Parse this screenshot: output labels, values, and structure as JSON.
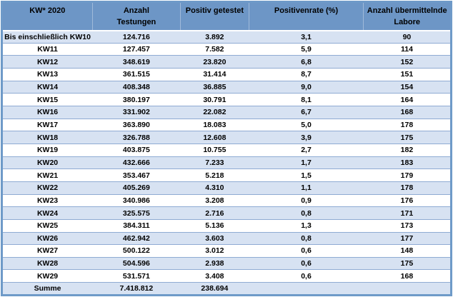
{
  "colors": {
    "outer_border": "#6e9ac8",
    "header_bg": "#6d96c6",
    "band_bg": "#d7e2f2",
    "row_line": "#8fabd3",
    "tick": "#5a7fae",
    "text": "#000000"
  },
  "table": {
    "headers": [
      {
        "label": "KW* 2020",
        "lines": [
          "KW* 2020",
          ""
        ]
      },
      {
        "label": "Anzahl Testungen",
        "lines": [
          "Anzahl",
          "Testungen"
        ]
      },
      {
        "label": "Positiv getestet",
        "lines": [
          "Positiv getestet",
          ""
        ]
      },
      {
        "label": "Positivenrate (%)",
        "lines": [
          "Positivenrate (%)",
          ""
        ]
      },
      {
        "label": "Anzahl übermittelnde Labore",
        "lines": [
          "Anzahl übermittelnde",
          "Labore"
        ]
      }
    ],
    "rows": [
      {
        "label": "Bis einschließlich KW10",
        "testungen": "124.716",
        "positiv": "3.892",
        "rate": "3,1",
        "labore": "90"
      },
      {
        "label": "KW11",
        "testungen": "127.457",
        "positiv": "7.582",
        "rate": "5,9",
        "labore": "114"
      },
      {
        "label": "KW12",
        "testungen": "348.619",
        "positiv": "23.820",
        "rate": "6,8",
        "labore": "152"
      },
      {
        "label": "KW13",
        "testungen": "361.515",
        "positiv": "31.414",
        "rate": "8,7",
        "labore": "151"
      },
      {
        "label": "KW14",
        "testungen": "408.348",
        "positiv": "36.885",
        "rate": "9,0",
        "labore": "154"
      },
      {
        "label": "KW15",
        "testungen": "380.197",
        "positiv": "30.791",
        "rate": "8,1",
        "labore": "164"
      },
      {
        "label": "KW16",
        "testungen": "331.902",
        "positiv": "22.082",
        "rate": "6,7",
        "labore": "168"
      },
      {
        "label": "KW17",
        "testungen": "363.890",
        "positiv": "18.083",
        "rate": "5,0",
        "labore": "178"
      },
      {
        "label": "KW18",
        "testungen": "326.788",
        "positiv": "12.608",
        "rate": "3,9",
        "labore": "175"
      },
      {
        "label": "KW19",
        "testungen": "403.875",
        "positiv": "10.755",
        "rate": "2,7",
        "labore": "182"
      },
      {
        "label": "KW20",
        "testungen": "432.666",
        "positiv": "7.233",
        "rate": "1,7",
        "labore": "183"
      },
      {
        "label": "KW21",
        "testungen": "353.467",
        "positiv": "5.218",
        "rate": "1,5",
        "labore": "179"
      },
      {
        "label": "KW22",
        "testungen": "405.269",
        "positiv": "4.310",
        "rate": "1,1",
        "labore": "178"
      },
      {
        "label": "KW23",
        "testungen": "340.986",
        "positiv": "3.208",
        "rate": "0,9",
        "labore": "176"
      },
      {
        "label": "KW24",
        "testungen": "325.575",
        "positiv": "2.716",
        "rate": "0,8",
        "labore": "171"
      },
      {
        "label": "KW25",
        "testungen": "384.311",
        "positiv": "5.136",
        "rate": "1,3",
        "labore": "173"
      },
      {
        "label": "KW26",
        "testungen": "462.942",
        "positiv": "3.603",
        "rate": "0,8",
        "labore": "177"
      },
      {
        "label": "KW27",
        "testungen": "500.122",
        "positiv": "3.012",
        "rate": "0,6",
        "labore": "148"
      },
      {
        "label": "KW28",
        "testungen": "504.596",
        "positiv": "2.938",
        "rate": "0,6",
        "labore": "175"
      },
      {
        "label": "KW29",
        "testungen": "531.571",
        "positiv": "3.408",
        "rate": "0,6",
        "labore": "168"
      },
      {
        "label": "Summe",
        "testungen": "7.418.812",
        "positiv": "238.694",
        "rate": "",
        "labore": ""
      }
    ]
  }
}
